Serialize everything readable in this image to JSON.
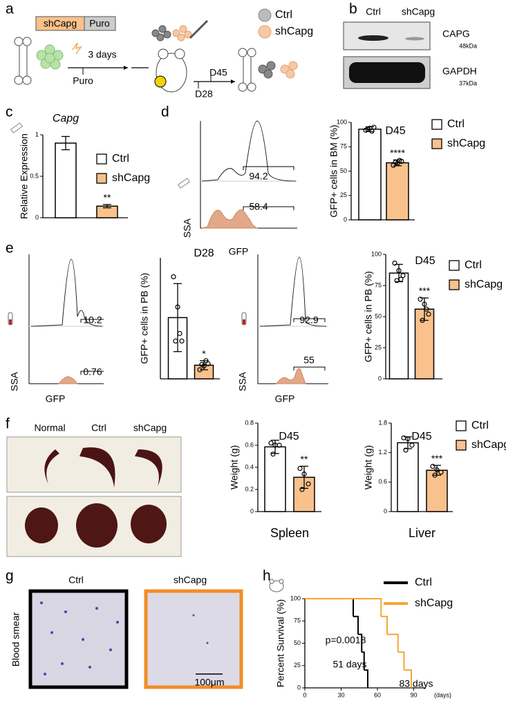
{
  "panel_labels": [
    "a",
    "b",
    "c",
    "d",
    "e",
    "f",
    "g",
    "h"
  ],
  "schematic": {
    "construct": [
      "shCapg",
      "Puro"
    ],
    "duration": "3 days",
    "selection": "Puro",
    "timepoints": [
      "D45",
      "D28"
    ],
    "legend": [
      "Ctrl",
      "shCapg"
    ]
  },
  "western_blot": {
    "lanes": [
      "Ctrl",
      "shCapg"
    ],
    "bands": [
      {
        "protein": "CAPG",
        "size": "48kDa"
      },
      {
        "protein": "GAPDH",
        "size": "37kDa"
      }
    ]
  },
  "flow": [
    {
      "gates": [
        94.2,
        58.4
      ],
      "y_label": "SSA",
      "x_label": "GFP"
    },
    {
      "gates": [
        10.2,
        0.76
      ],
      "y_label": "SSA",
      "x_label": "GFP"
    },
    {
      "gates": [
        92.9,
        55
      ],
      "y_label": "SSA",
      "x_label": "GFP"
    }
  ],
  "organs": {
    "groups": [
      "Normal",
      "Ctrl",
      "shCapg"
    ]
  },
  "blood_smear": {
    "groups": [
      "Ctrl",
      "shCapg"
    ],
    "label": "Blood smear",
    "scale": "100μm"
  },
  "chart_data": [
    {
      "type": "bar",
      "title": "Capg",
      "ylabel": "Relative Expression",
      "ylim": [
        0,
        1
      ],
      "yticks": [
        0,
        0.5,
        1
      ],
      "legend": true,
      "significance": "**",
      "series": [
        {
          "name": "Ctrl",
          "color": "#ffffff",
          "values": [
            0.9
          ],
          "errors": [
            0.08
          ]
        },
        {
          "name": "shCapg",
          "color": "#f9c18c",
          "values": [
            0.14
          ],
          "errors": [
            0.02
          ]
        }
      ]
    },
    {
      "type": "bar",
      "title": "D45",
      "ylabel": "GFP+ cells in BM (%)",
      "ylim": [
        0,
        100
      ],
      "yticks": [
        0,
        25,
        50,
        75,
        100
      ],
      "legend": true,
      "significance": "****",
      "series": [
        {
          "name": "Ctrl",
          "color": "#ffffff",
          "values": [
            93
          ],
          "errors": [
            2.5
          ],
          "points": [
            92,
            94,
            95,
            93,
            91
          ]
        },
        {
          "name": "shCapg",
          "color": "#f9c18c",
          "values": [
            58.5
          ],
          "errors": [
            3
          ],
          "points": [
            56,
            58,
            60,
            59,
            61
          ]
        }
      ]
    },
    {
      "type": "bar",
      "title": "D28",
      "ylabel": "GFP+ cells in PB (%)",
      "ylim": [
        0,
        16
      ],
      "legend": false,
      "significance": "*",
      "series": [
        {
          "name": "Ctrl",
          "color": "#ffffff",
          "values": [
            8.1
          ],
          "errors": [
            4.5
          ],
          "points": [
            13.5,
            9.5,
            5,
            5,
            6
          ]
        },
        {
          "name": "shCapg",
          "color": "#f9c18c",
          "values": [
            1.8
          ],
          "errors": [
            0.6
          ],
          "points": [
            1.2,
            1.7,
            2,
            1.9,
            2.4
          ]
        }
      ]
    },
    {
      "type": "bar",
      "title": "D45",
      "ylabel": "GFP+ cells in PB (%)",
      "ylim": [
        0,
        100
      ],
      "yticks": [
        0,
        25,
        50,
        75,
        100
      ],
      "legend": true,
      "significance": "***",
      "series": [
        {
          "name": "Ctrl",
          "color": "#ffffff",
          "values": [
            85
          ],
          "errors": [
            7
          ],
          "points": [
            93,
            87,
            83,
            79,
            80
          ]
        },
        {
          "name": "shCapg",
          "color": "#f9c18c",
          "values": [
            56
          ],
          "errors": [
            9
          ],
          "points": [
            64,
            60,
            52,
            47,
            56
          ]
        }
      ]
    },
    {
      "type": "bar",
      "title": "D45",
      "ylabel": "Weight (g)",
      "xlabel": "Spleen",
      "ylim": [
        0,
        0.8
      ],
      "yticks": [
        0,
        0.2,
        0.4,
        0.6,
        0.8
      ],
      "legend": false,
      "significance": "**",
      "series": [
        {
          "name": "Ctrl",
          "color": "#ffffff",
          "values": [
            0.585
          ],
          "errors": [
            0.06
          ],
          "points": [
            0.62,
            0.6,
            0.6,
            0.52
          ]
        },
        {
          "name": "shCapg",
          "color": "#f9c18c",
          "values": [
            0.31
          ],
          "errors": [
            0.1
          ],
          "points": [
            0.39,
            0.34,
            0.25,
            0.2
          ]
        }
      ]
    },
    {
      "type": "bar",
      "title": "D45",
      "ylabel": "Weight (g)",
      "xlabel": "Liver",
      "ylim": [
        0,
        1.8
      ],
      "yticks": [
        0,
        0.6,
        1.2,
        1.8
      ],
      "legend": true,
      "significance": "***",
      "series": [
        {
          "name": "Ctrl",
          "color": "#ffffff",
          "values": [
            1.4
          ],
          "errors": [
            0.12
          ],
          "points": [
            1.5,
            1.48,
            1.35,
            1.25
          ]
        },
        {
          "name": "shCapg",
          "color": "#f9c18c",
          "values": [
            0.84
          ],
          "errors": [
            0.1
          ],
          "points": [
            0.92,
            0.85,
            0.8,
            0.74
          ]
        }
      ]
    },
    {
      "type": "line",
      "step": "post",
      "ylabel": "Percent Survival (%)",
      "xlabel": "(days)",
      "xlim": [
        0,
        100
      ],
      "xticks": [
        0,
        30,
        60,
        90
      ],
      "ylim": [
        0,
        100
      ],
      "yticks": [
        0,
        25,
        50,
        75,
        100
      ],
      "legend": true,
      "annotations": [
        "p=0.0018",
        "51 days",
        "83 days"
      ],
      "series": [
        {
          "name": "Ctrl",
          "color": "#000000",
          "x": [
            0,
            40,
            44,
            47,
            49,
            52
          ],
          "values": [
            100,
            80,
            60,
            40,
            20,
            0
          ]
        },
        {
          "name": "shCapg",
          "color": "#f7a533",
          "x": [
            0,
            63,
            68,
            77,
            82,
            88
          ],
          "values": [
            100,
            80,
            60,
            40,
            20,
            0
          ]
        }
      ]
    }
  ]
}
